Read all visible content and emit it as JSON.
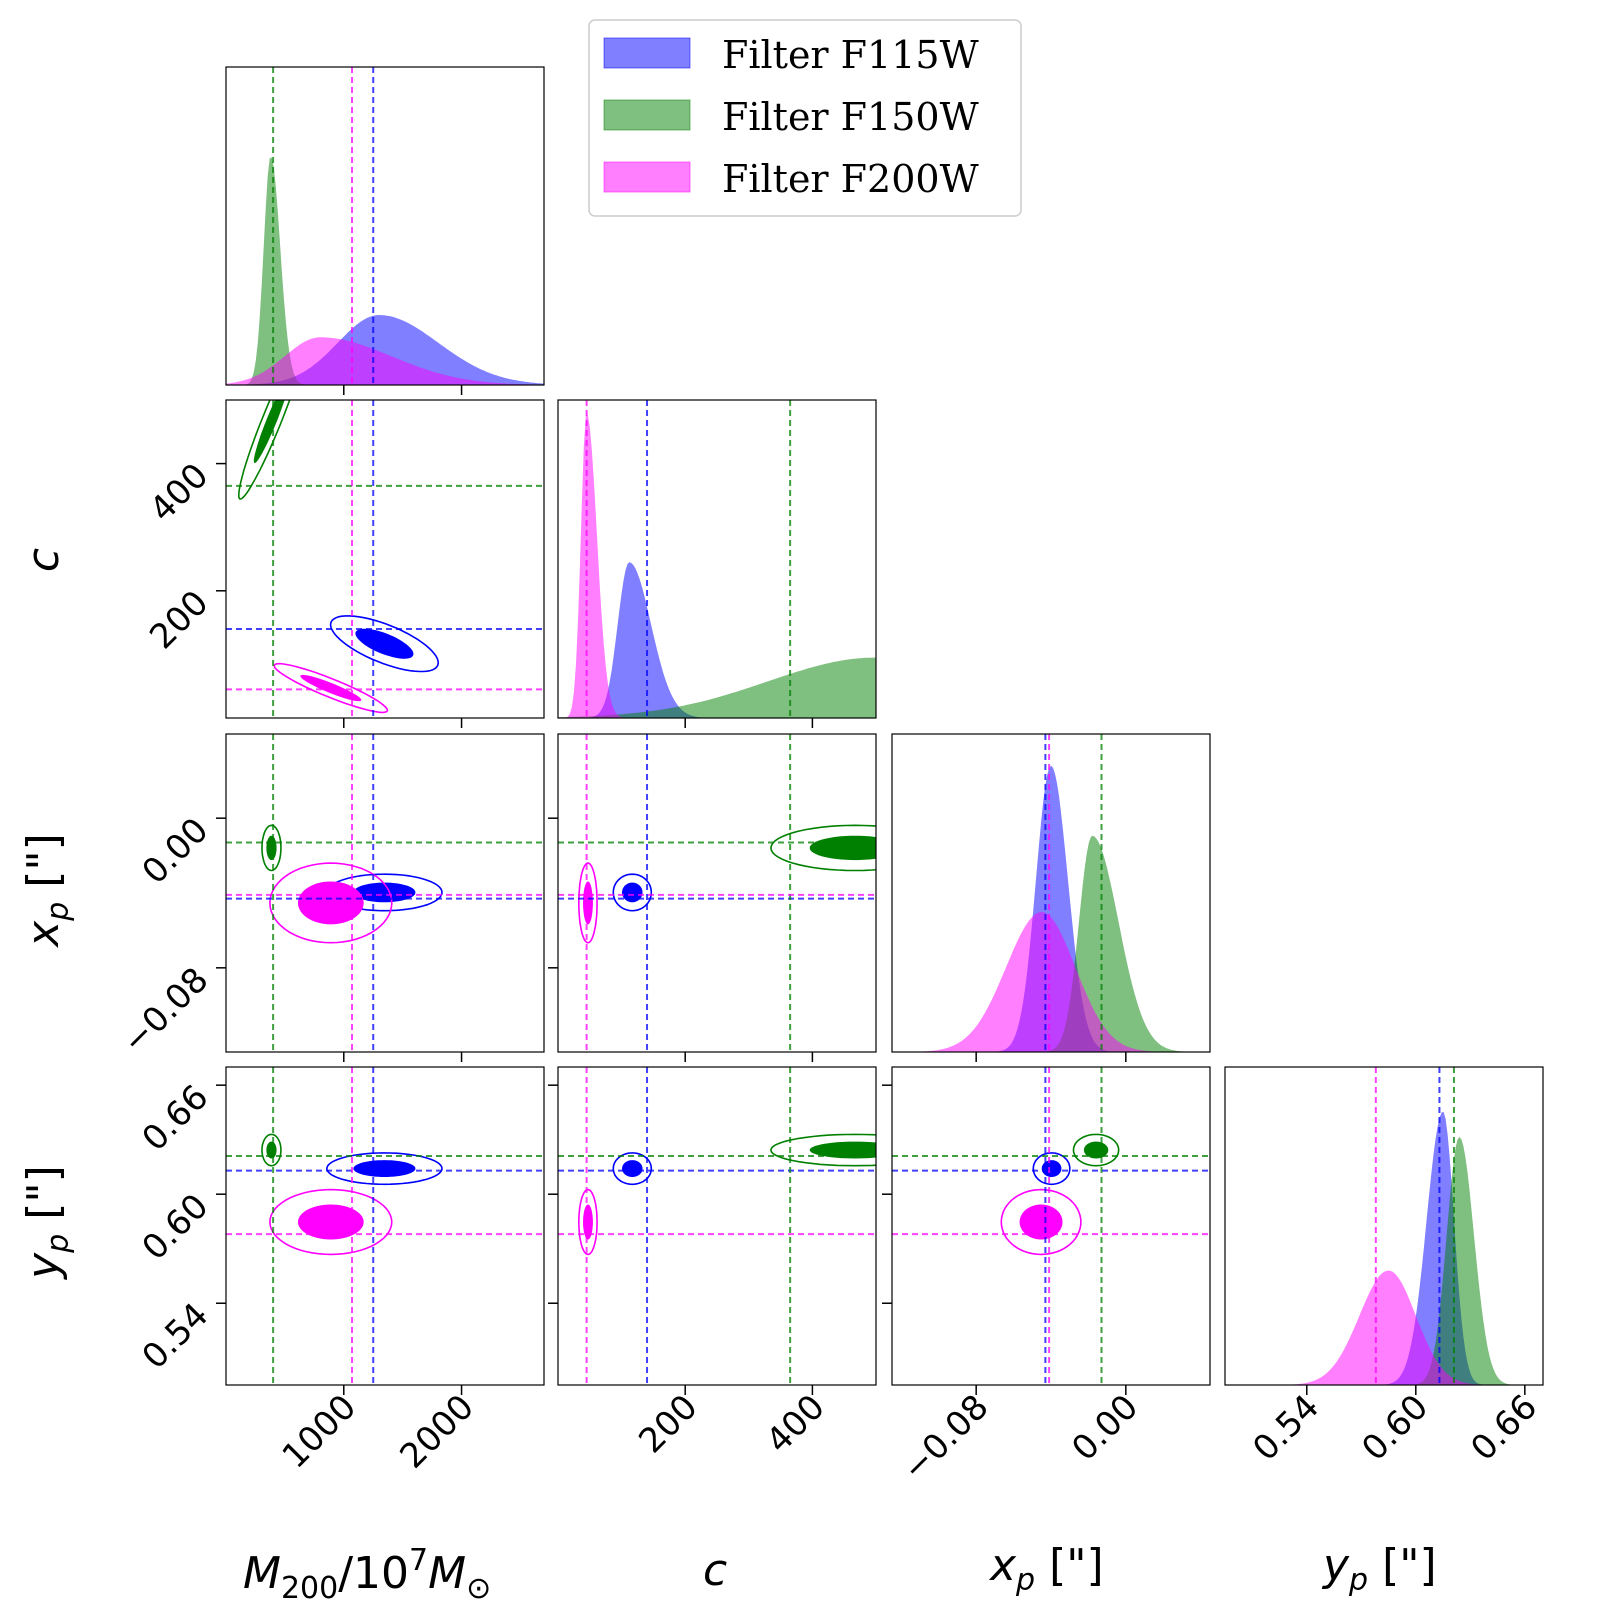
{
  "chart_data": {
    "type": "corner",
    "title": "",
    "parameters": [
      {
        "key": "M200",
        "label": "M_200/10^7 M_⊙",
        "range": [
          0,
          2700
        ],
        "ticks": [
          1000,
          2000
        ],
        "tick_labels": [
          "1000",
          "2000"
        ]
      },
      {
        "key": "c",
        "label": "c",
        "range": [
          0,
          500
        ],
        "ticks": [
          200,
          400
        ],
        "tick_labels": [
          "200",
          "400"
        ]
      },
      {
        "key": "xp",
        "label": "x_p [\"]",
        "range": [
          -0.125,
          0.045
        ],
        "ticks": [
          -0.08,
          0.0
        ],
        "tick_labels": [
          "−0.08",
          "0.00"
        ]
      },
      {
        "key": "yp",
        "label": "y_p [\"]",
        "range": [
          0.495,
          0.67
        ],
        "ticks": [
          0.54,
          0.6,
          0.66
        ],
        "tick_labels": [
          "0.54",
          "0.60",
          "0.66"
        ]
      }
    ],
    "series": [
      {
        "name": "Filter F115W",
        "color": "#0000ff",
        "fill_alpha": 0.5,
        "reference": {
          "M200": 1250,
          "c": 140,
          "xp": -0.043,
          "yp": 0.613
        },
        "marginals": {
          "M200": {
            "peak": 1300,
            "width_lo": 350,
            "width_hi": 500,
            "height": 0.22
          },
          "c": {
            "peak": 112,
            "width_lo": 18,
            "width_hi": 34,
            "height": 0.49
          },
          "xp": {
            "peak": -0.04,
            "width_lo": 0.008,
            "width_hi": 0.009,
            "height": 0.9
          },
          "yp": {
            "peak": 0.615,
            "width_lo": 0.009,
            "width_hi": 0.006,
            "height": 0.86
          }
        }
      },
      {
        "name": "Filter F150W",
        "color": "#008000",
        "fill_alpha": 0.5,
        "reference": {
          "M200": 400,
          "c": 365,
          "xp": -0.013,
          "yp": 0.621
        },
        "marginals": {
          "M200": {
            "peak": 380,
            "width_lo": 60,
            "width_hi": 80,
            "height": 0.72
          },
          "c": {
            "peak": 500,
            "width_lo": 170,
            "width_hi": 60,
            "height": 0.19
          },
          "xp": {
            "peak": -0.018,
            "width_lo": 0.007,
            "width_hi": 0.014,
            "height": 0.68
          },
          "yp": {
            "peak": 0.624,
            "width_lo": 0.007,
            "width_hi": 0.008,
            "height": 0.78
          }
        }
      },
      {
        "name": "Filter F200W",
        "color": "#ff00ff",
        "fill_alpha": 0.5,
        "reference": {
          "M200": 1070,
          "c": 45,
          "xp": -0.041,
          "yp": 0.578
        },
        "marginals": {
          "M200": {
            "peak": 800,
            "width_lo": 300,
            "width_hi": 600,
            "height": 0.15
          },
          "c": {
            "peak": 45,
            "width_lo": 9,
            "width_hi": 16,
            "height": 0.96
          },
          "xp": {
            "peak": -0.045,
            "width_lo": 0.019,
            "width_hi": 0.018,
            "height": 0.44
          },
          "yp": {
            "peak": 0.585,
            "width_lo": 0.016,
            "width_hi": 0.015,
            "height": 0.36
          }
        }
      }
    ],
    "legend": {
      "position": "top-center",
      "entries": [
        "Filter F115W",
        "Filter F150W",
        "Filter F200W"
      ]
    }
  },
  "axis_labels": {
    "M200_base": "M",
    "M200_sub": "200",
    "M200_mid": "/10",
    "M200_sup": "7",
    "M200_base2": "M",
    "M200_sub2": "⊙",
    "c": "c",
    "xp_base": "x",
    "xp_sub": "p",
    "xp_unit": " [\"]",
    "yp_base": "y",
    "yp_sub": "p",
    "yp_unit": " [\"]"
  }
}
